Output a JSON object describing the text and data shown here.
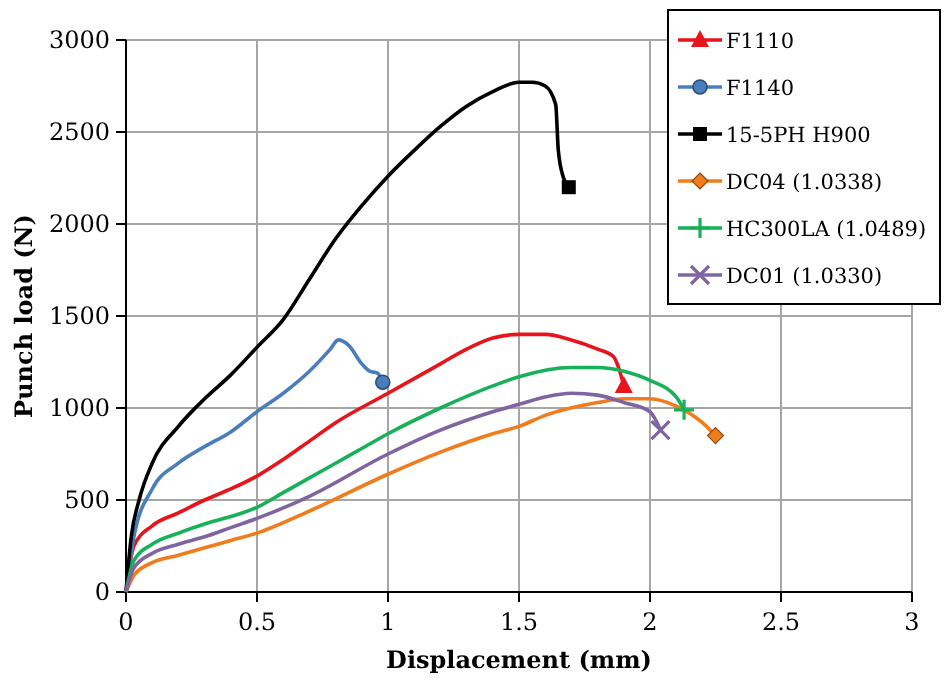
{
  "chart_data": {
    "type": "line",
    "xlabel": "Displacement (mm)",
    "ylabel": "Punch load (N)",
    "xlim": [
      0,
      3
    ],
    "ylim": [
      0,
      3000
    ],
    "xticks": [
      0,
      0.5,
      1,
      1.5,
      2,
      2.5,
      3
    ],
    "yticks": [
      0,
      500,
      1000,
      1500,
      2000,
      2500,
      3000
    ],
    "grid": true,
    "legend": "top right",
    "line_style": "solid",
    "series": [
      {
        "name": "F1110",
        "color": "#e8141c",
        "x": [
          0,
          0.03,
          0.1,
          0.2,
          0.3,
          0.4,
          0.5,
          0.6,
          0.7,
          0.8,
          1.0,
          1.2,
          1.3,
          1.4,
          1.5,
          1.6,
          1.7,
          1.8,
          1.86,
          1.88,
          1.9
        ],
        "values": [
          0,
          250,
          360,
          430,
          500,
          560,
          630,
          720,
          820,
          920,
          1080,
          1240,
          1320,
          1380,
          1400,
          1400,
          1370,
          1320,
          1280,
          1220,
          1120
        ]
      },
      {
        "name": "F1140",
        "color": "#4a7ebb",
        "x": [
          0,
          0.03,
          0.1,
          0.2,
          0.3,
          0.4,
          0.5,
          0.6,
          0.7,
          0.78,
          0.81,
          0.85,
          0.9,
          0.93,
          0.96,
          0.98
        ],
        "values": [
          0,
          300,
          560,
          700,
          790,
          870,
          980,
          1080,
          1200,
          1320,
          1370,
          1340,
          1240,
          1200,
          1190,
          1140
        ]
      },
      {
        "name": "15-5PH H900",
        "color": "#000000",
        "x": [
          0,
          0.02,
          0.05,
          0.1,
          0.2,
          0.3,
          0.4,
          0.5,
          0.6,
          0.7,
          0.8,
          0.9,
          1.0,
          1.1,
          1.2,
          1.3,
          1.4,
          1.5,
          1.55,
          1.6,
          1.64,
          1.65,
          1.67,
          1.69
        ],
        "values": [
          0,
          300,
          500,
          700,
          900,
          1050,
          1180,
          1330,
          1480,
          1700,
          1920,
          2100,
          2260,
          2400,
          2530,
          2640,
          2720,
          2770,
          2770,
          2750,
          2650,
          2400,
          2250,
          2200
        ]
      },
      {
        "name": "DC04 (1.0338)",
        "color": "#f07c1c",
        "x": [
          0,
          0.03,
          0.1,
          0.2,
          0.3,
          0.4,
          0.5,
          0.7,
          1.0,
          1.2,
          1.4,
          1.5,
          1.6,
          1.8,
          1.9,
          2.0,
          2.1,
          2.2,
          2.25
        ],
        "values": [
          0,
          90,
          160,
          200,
          240,
          280,
          320,
          440,
          640,
          760,
          860,
          900,
          960,
          1030,
          1050,
          1050,
          1010,
          920,
          850
        ]
      },
      {
        "name": "HC300LA (1.0489)",
        "color": "#18b058",
        "x": [
          0,
          0.03,
          0.1,
          0.2,
          0.3,
          0.4,
          0.5,
          0.6,
          0.7,
          0.8,
          0.9,
          1.0,
          1.2,
          1.4,
          1.5,
          1.7,
          1.8,
          1.9,
          2.0,
          2.1,
          2.13
        ],
        "values": [
          0,
          170,
          260,
          320,
          370,
          410,
          460,
          540,
          620,
          700,
          780,
          860,
          1000,
          1120,
          1170,
          1220,
          1220,
          1200,
          1150,
          1060,
          990
        ]
      },
      {
        "name": "DC01 (1.0330)",
        "color": "#8064a2",
        "x": [
          0,
          0.03,
          0.1,
          0.2,
          0.3,
          0.4,
          0.5,
          0.7,
          1.0,
          1.2,
          1.4,
          1.5,
          1.6,
          1.7,
          1.8,
          1.9,
          2.0,
          2.04
        ],
        "values": [
          0,
          130,
          210,
          260,
          300,
          350,
          400,
          520,
          750,
          880,
          980,
          1020,
          1060,
          1080,
          1070,
          1030,
          980,
          880
        ]
      }
    ]
  }
}
